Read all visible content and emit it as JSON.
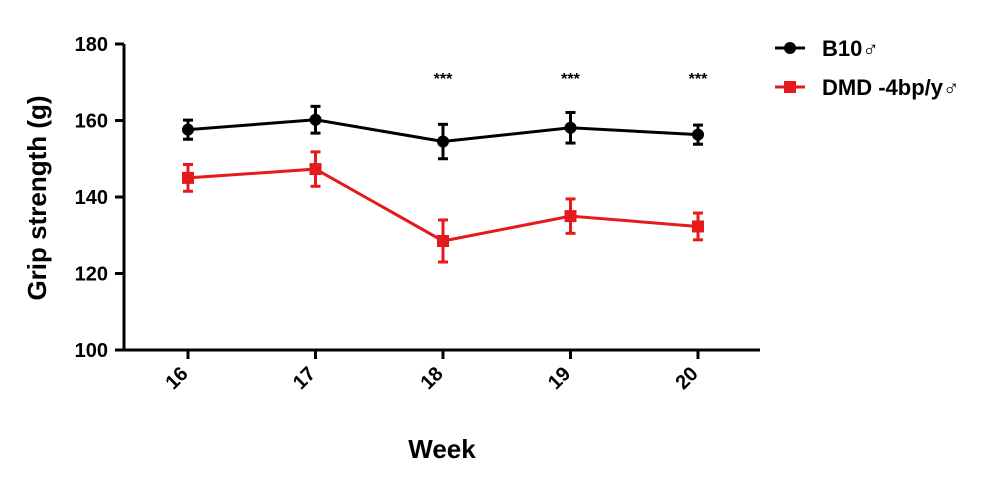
{
  "chart_data": {
    "type": "line",
    "title": "",
    "xlabel": "Week",
    "ylabel": "Grip strength  (g)",
    "x": [
      "16",
      "17",
      "18",
      "19",
      "20"
    ],
    "ylim": [
      100,
      180
    ],
    "yticks": [
      "100",
      "120",
      "140",
      "160",
      "180"
    ],
    "grid": false,
    "legend_position": "top-right",
    "series": [
      {
        "name": "B10♂",
        "color": "#000000",
        "marker": "circle",
        "values": [
          157.6,
          160.2,
          154.5,
          158.1,
          156.3
        ],
        "error": [
          2.5,
          3.5,
          4.5,
          4.0,
          2.5
        ]
      },
      {
        "name": "DMD -4bp/y♂",
        "color": "#e41a1c",
        "marker": "square",
        "values": [
          145.0,
          147.3,
          128.5,
          135.0,
          132.3
        ],
        "error": [
          3.5,
          4.5,
          5.5,
          4.5,
          3.5
        ]
      }
    ],
    "annotations": [
      {
        "x": "18",
        "text": "***"
      },
      {
        "x": "19",
        "text": "***"
      },
      {
        "x": "20",
        "text": "***"
      }
    ]
  }
}
